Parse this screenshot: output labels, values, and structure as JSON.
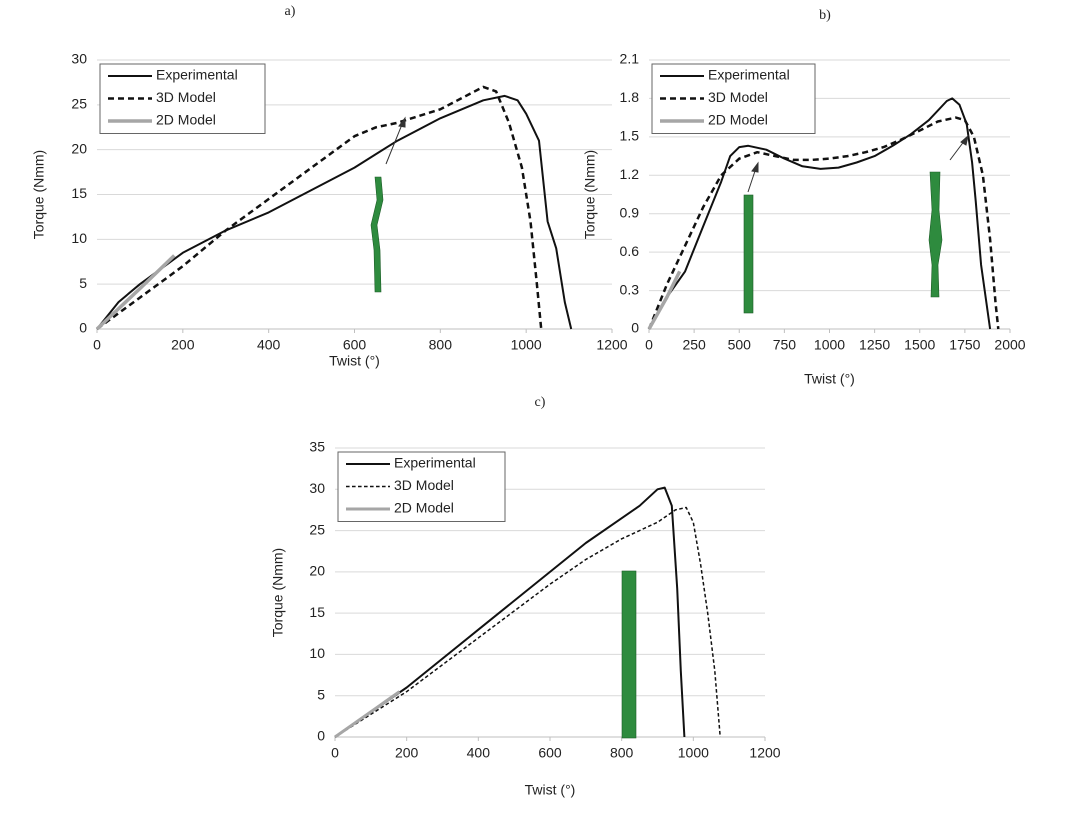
{
  "chart_data": [
    {
      "type": "line",
      "title": "a)",
      "x_label": "Twist (°)",
      "y_label": "Torque (Nmm)",
      "xlim": [
        0,
        1200
      ],
      "xticks": [
        0,
        200,
        400,
        600,
        800,
        1000,
        1200
      ],
      "ylim": [
        0,
        30
      ],
      "yticks": [
        0,
        5,
        10,
        15,
        20,
        25,
        30
      ],
      "grid": true,
      "legend": "upper-left",
      "series": [
        {
          "name": "Experimental",
          "color": "#111111",
          "dash": "solid",
          "width": 2,
          "x": [
            0,
            50,
            100,
            200,
            300,
            400,
            500,
            600,
            700,
            800,
            900,
            950,
            980,
            1000,
            1030,
            1050,
            1070,
            1090,
            1105
          ],
          "y": [
            0,
            3,
            5,
            8.5,
            11,
            13,
            15.5,
            18,
            21,
            23.5,
            25.5,
            26,
            25.5,
            24,
            21,
            12,
            9,
            3,
            0
          ]
        },
        {
          "name": "3D Model",
          "color": "#111111",
          "dash": "dashed",
          "width": 2.5,
          "x": [
            0,
            100,
            200,
            300,
            400,
            500,
            600,
            650,
            700,
            800,
            900,
            930,
            960,
            990,
            1010,
            1025,
            1035
          ],
          "y": [
            0,
            3.5,
            7,
            11,
            14.5,
            18,
            21.5,
            22.5,
            23,
            24.5,
            27,
            26.5,
            23,
            18,
            12,
            5,
            0
          ]
        },
        {
          "name": "2D Model",
          "color": "#a6a6a6",
          "dash": "solid",
          "width": 3.5,
          "x": [
            0,
            100,
            180
          ],
          "y": [
            0,
            4.5,
            8.2
          ]
        }
      ]
    },
    {
      "type": "line",
      "title": "b)",
      "x_label": "Twist (°)",
      "y_label": "Torque (Nmm)",
      "xlim": [
        0,
        2000
      ],
      "xticks": [
        0,
        250,
        500,
        750,
        1000,
        1250,
        1500,
        1750,
        2000
      ],
      "ylim": [
        0,
        2.1
      ],
      "yticks": [
        0,
        {
          "value": 0.3,
          "label": "0.3"
        },
        {
          "value": 0.6,
          "label": "0.6"
        },
        {
          "value": 0.9,
          "label": "0.9"
        },
        {
          "value": 1.2,
          "label": "1.2"
        },
        {
          "value": 1.5,
          "label": "1.5"
        },
        {
          "value": 1.8,
          "label": "1.8"
        },
        {
          "value": 2.1,
          "label": "2.1"
        }
      ],
      "grid": true,
      "legend": "upper-left",
      "series": [
        {
          "name": "Experimental",
          "color": "#111111",
          "dash": "solid",
          "width": 2,
          "x": [
            0,
            100,
            200,
            300,
            400,
            450,
            500,
            550,
            650,
            750,
            850,
            950,
            1050,
            1150,
            1250,
            1350,
            1450,
            1550,
            1650,
            1680,
            1720,
            1760,
            1790,
            1810,
            1840,
            1870,
            1890
          ],
          "y": [
            0,
            0.25,
            0.45,
            0.8,
            1.15,
            1.35,
            1.42,
            1.43,
            1.4,
            1.33,
            1.27,
            1.25,
            1.26,
            1.3,
            1.35,
            1.43,
            1.52,
            1.63,
            1.78,
            1.8,
            1.75,
            1.6,
            1.3,
            1.0,
            0.5,
            0.2,
            0
          ]
        },
        {
          "name": "3D Model",
          "color": "#111111",
          "dash": "dashed",
          "width": 2.5,
          "x": [
            0,
            100,
            200,
            300,
            400,
            500,
            600,
            700,
            800,
            900,
            1000,
            1100,
            1200,
            1300,
            1400,
            1500,
            1600,
            1700,
            1750,
            1800,
            1850,
            1890,
            1920,
            1935
          ],
          "y": [
            0,
            0.35,
            0.65,
            0.95,
            1.2,
            1.33,
            1.38,
            1.35,
            1.32,
            1.32,
            1.33,
            1.35,
            1.38,
            1.42,
            1.48,
            1.55,
            1.62,
            1.65,
            1.63,
            1.5,
            1.2,
            0.7,
            0.2,
            0
          ]
        },
        {
          "name": "2D Model",
          "color": "#a6a6a6",
          "dash": "solid",
          "width": 3.5,
          "x": [
            0,
            100,
            170
          ],
          "y": [
            0,
            0.25,
            0.45
          ]
        }
      ]
    },
    {
      "type": "line",
      "title": "c)",
      "x_label": "Twist (°)",
      "y_label": "Torque (Nmm)",
      "xlim": [
        0,
        1200
      ],
      "xticks": [
        0,
        200,
        400,
        600,
        800,
        1000,
        1200
      ],
      "ylim": [
        0,
        35
      ],
      "yticks": [
        0,
        5,
        10,
        15,
        20,
        25,
        30,
        35
      ],
      "grid": true,
      "legend": "upper-left",
      "series": [
        {
          "name": "Experimental",
          "color": "#111111",
          "dash": "solid",
          "width": 2,
          "x": [
            0,
            200,
            400,
            600,
            700,
            800,
            850,
            900,
            920,
            940,
            955,
            965,
            975
          ],
          "y": [
            0,
            6,
            13,
            20,
            23.5,
            26.5,
            28,
            30,
            30.2,
            28,
            18,
            8,
            0
          ]
        },
        {
          "name": "3D Model",
          "color": "#111111",
          "dash": "dashed",
          "width": 1.5,
          "x": [
            0,
            200,
            400,
            600,
            700,
            800,
            900,
            950,
            980,
            1000,
            1020,
            1040,
            1060,
            1075
          ],
          "y": [
            0,
            5.5,
            12,
            18.5,
            21.5,
            24,
            26,
            27.5,
            27.8,
            26,
            21,
            15,
            8,
            0
          ]
        },
        {
          "name": "2D Model",
          "color": "#a6a6a6",
          "dash": "solid",
          "width": 3,
          "x": [
            0,
            180
          ],
          "y": [
            0,
            5.5
          ]
        }
      ]
    }
  ]
}
